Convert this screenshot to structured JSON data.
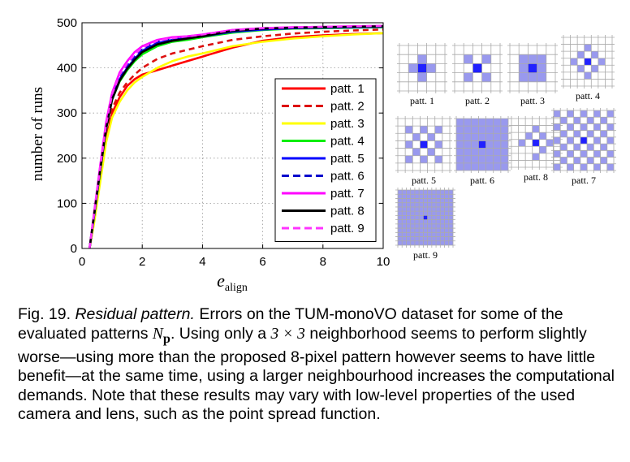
{
  "chart_data": {
    "type": "line",
    "xlabel": "e",
    "xlabel_sub": "align",
    "ylabel": "number of runs",
    "xlim": [
      0,
      10
    ],
    "ylim": [
      0,
      500
    ],
    "xticks": [
      0,
      2,
      4,
      6,
      8,
      10
    ],
    "yticks": [
      0,
      100,
      200,
      300,
      400,
      500
    ],
    "grid": true,
    "legend_position": "lower-right",
    "x": [
      0.25,
      0.4,
      0.6,
      0.8,
      1.0,
      1.25,
      1.5,
      1.75,
      2.0,
      2.5,
      3.0,
      3.5,
      4.0,
      5.0,
      6.0,
      7.0,
      8.0,
      9.0,
      10.0
    ],
    "series": [
      {
        "name": "patt. 1",
        "color": "#ff0000",
        "dash": false,
        "values": [
          0,
          60,
          150,
          240,
          300,
          335,
          360,
          375,
          385,
          395,
          405,
          415,
          425,
          445,
          460,
          468,
          472,
          475,
          477
        ]
      },
      {
        "name": "patt. 2",
        "color": "#dd1010",
        "dash": true,
        "values": [
          0,
          65,
          160,
          250,
          310,
          345,
          368,
          385,
          400,
          420,
          432,
          440,
          448,
          462,
          470,
          476,
          480,
          483,
          485
        ]
      },
      {
        "name": "patt. 3",
        "color": "#ffff00",
        "dash": false,
        "values": [
          0,
          55,
          145,
          235,
          290,
          325,
          350,
          368,
          380,
          400,
          415,
          425,
          432,
          448,
          458,
          465,
          470,
          474,
          477
        ]
      },
      {
        "name": "patt. 4",
        "color": "#00ee00",
        "dash": false,
        "values": [
          0,
          70,
          170,
          265,
          330,
          370,
          395,
          415,
          430,
          448,
          458,
          462,
          468,
          478,
          484,
          487,
          488,
          489,
          490
        ]
      },
      {
        "name": "patt. 5",
        "color": "#0000ff",
        "dash": false,
        "values": [
          0,
          72,
          172,
          268,
          335,
          375,
          400,
          420,
          438,
          455,
          462,
          466,
          470,
          480,
          485,
          488,
          489,
          490,
          491
        ]
      },
      {
        "name": "patt. 6",
        "color": "#0000cc",
        "dash": true,
        "values": [
          0,
          74,
          175,
          270,
          338,
          378,
          405,
          425,
          442,
          458,
          465,
          468,
          472,
          482,
          487,
          489,
          490,
          491,
          492
        ]
      },
      {
        "name": "patt. 7",
        "color": "#ff00ff",
        "dash": false,
        "values": [
          0,
          78,
          182,
          280,
          345,
          390,
          415,
          435,
          448,
          462,
          468,
          470,
          474,
          484,
          488,
          490,
          491,
          492,
          493
        ]
      },
      {
        "name": "patt. 8",
        "color": "#000000",
        "dash": false,
        "values": [
          0,
          73,
          172,
          265,
          330,
          372,
          398,
          418,
          435,
          452,
          460,
          465,
          470,
          482,
          487,
          489,
          490,
          491,
          492
        ]
      },
      {
        "name": "patt. 9",
        "color": "#ff33ff",
        "dash": true,
        "values": [
          0,
          76,
          178,
          275,
          342,
          385,
          410,
          430,
          445,
          460,
          466,
          470,
          474,
          484,
          488,
          490,
          491,
          492,
          493
        ]
      }
    ]
  },
  "patterns": [
    {
      "label": "patt. 1",
      "size": 5,
      "cells": [
        [
          1,
          2
        ],
        [
          2,
          1
        ],
        [
          2,
          3
        ],
        [
          3,
          2
        ]
      ]
    },
    {
      "label": "patt. 2",
      "size": 5,
      "cells": [
        [
          1,
          1
        ],
        [
          1,
          3
        ],
        [
          3,
          1
        ],
        [
          3,
          3
        ]
      ]
    },
    {
      "label": "patt. 3",
      "size": 5,
      "cells": [
        [
          1,
          1
        ],
        [
          1,
          2
        ],
        [
          1,
          3
        ],
        [
          2,
          1
        ],
        [
          2,
          3
        ],
        [
          3,
          1
        ],
        [
          3,
          2
        ],
        [
          3,
          3
        ]
      ]
    },
    {
      "label": "patt. 4",
      "size": 7,
      "cells": [
        [
          1,
          3
        ],
        [
          2,
          2
        ],
        [
          2,
          4
        ],
        [
          3,
          1
        ],
        [
          3,
          5
        ],
        [
          4,
          2
        ],
        [
          4,
          4
        ],
        [
          5,
          3
        ]
      ]
    },
    {
      "label": "patt. 5",
      "size": 7,
      "cells": [
        [
          1,
          1
        ],
        [
          1,
          3
        ],
        [
          1,
          5
        ],
        [
          2,
          2
        ],
        [
          2,
          4
        ],
        [
          3,
          1
        ],
        [
          3,
          5
        ],
        [
          4,
          2
        ],
        [
          4,
          4
        ],
        [
          5,
          1
        ],
        [
          5,
          3
        ],
        [
          5,
          5
        ]
      ]
    },
    {
      "label": "patt. 6",
      "size": 7,
      "cells": "all"
    },
    {
      "label": "patt. 8",
      "size": 7,
      "cells": [
        [
          1,
          3
        ],
        [
          2,
          2
        ],
        [
          2,
          4
        ],
        [
          3,
          1
        ],
        [
          3,
          5
        ],
        [
          4,
          4
        ],
        [
          5,
          3
        ],
        [
          3,
          3
        ]
      ]
    },
    {
      "label": "patt. 7",
      "size": 9,
      "cells": "checker"
    },
    {
      "label": "patt. 9",
      "size": 13,
      "cells": "all"
    }
  ],
  "caption": {
    "fig": "Fig. 19.",
    "title": "Residual pattern.",
    "text1": "Errors on the TUM-monoVO dataset for some of the evaluated patterns",
    "math_n": "N",
    "math_p": "p",
    "text2": ". Using only a",
    "math_size": "3 × 3",
    "text3": "neighborhood seems to perform slightly worse—using more than the proposed 8-pixel pattern however seems to have little benefit—at the same time, using a larger neighbourhood increases the computational demands. Note that these results may vary with low-level properties of the used camera and lens, such as the point spread function."
  }
}
